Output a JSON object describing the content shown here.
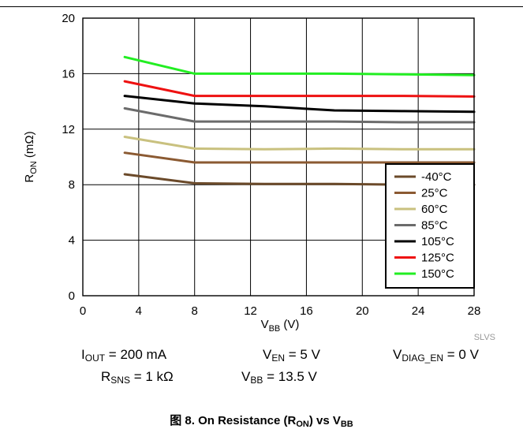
{
  "chart_data": {
    "type": "line",
    "xlabel": {
      "base": "V",
      "sub": "BB",
      "tail": " (V)"
    },
    "ylabel": {
      "base": "R",
      "sub": "ON",
      "tail": " (mΩ)"
    },
    "xlim": [
      0,
      28
    ],
    "ylim": [
      0,
      20
    ],
    "x_ticks": [
      0,
      4,
      8,
      12,
      16,
      20,
      24,
      28
    ],
    "y_ticks": [
      0,
      4,
      8,
      12,
      16,
      20
    ],
    "grid": true,
    "legend_position": "bottom-right",
    "series": [
      {
        "name": "-40°C",
        "color": "#6b4a2a",
        "x": [
          3,
          8,
          13,
          18,
          23,
          28
        ],
        "values": [
          8.75,
          8.1,
          8.05,
          8.05,
          8.0,
          8.0
        ]
      },
      {
        "name": "25°C",
        "color": "#8b5a32",
        "x": [
          3,
          8,
          13,
          18,
          23,
          28
        ],
        "values": [
          10.3,
          9.6,
          9.6,
          9.6,
          9.6,
          9.6
        ]
      },
      {
        "name": "60°C",
        "color": "#c9c17f",
        "x": [
          3,
          8,
          13,
          18,
          23,
          28
        ],
        "values": [
          11.45,
          10.6,
          10.55,
          10.6,
          10.55,
          10.55
        ]
      },
      {
        "name": "85°C",
        "color": "#6b6b6b",
        "x": [
          3,
          8,
          13,
          18,
          23,
          28
        ],
        "values": [
          13.5,
          12.55,
          12.55,
          12.55,
          12.5,
          12.5
        ]
      },
      {
        "name": "105°C",
        "color": "#000000",
        "x": [
          3,
          8,
          13,
          18,
          23,
          28
        ],
        "values": [
          14.4,
          13.85,
          13.65,
          13.35,
          13.3,
          13.25
        ]
      },
      {
        "name": "125°C",
        "color": "#ee1111",
        "x": [
          3,
          8,
          13,
          18,
          23,
          28
        ],
        "values": [
          15.45,
          14.4,
          14.4,
          14.4,
          14.4,
          14.35
        ]
      },
      {
        "name": "150°C",
        "color": "#22ee22",
        "x": [
          3,
          8,
          13,
          18,
          23,
          28
        ],
        "values": [
          17.2,
          16.0,
          16.0,
          16.0,
          15.95,
          15.9
        ]
      }
    ],
    "watermark": "SLVS"
  },
  "conditions": {
    "iout": {
      "base": "I",
      "sub": "OUT",
      "tail": " = 200 mA"
    },
    "ven": {
      "base": "V",
      "sub": "EN",
      "tail": " = 5 V"
    },
    "vdiag": {
      "base": "V",
      "sub": "DIAG_EN",
      "tail": " = 0 V"
    },
    "rsns": {
      "base": "R",
      "sub": "SNS",
      "tail": " = 1 kΩ"
    },
    "vbb": {
      "base": "V",
      "sub": "BB",
      "tail": " = 13.5 V"
    }
  },
  "caption": {
    "prefix": "图 8. On Resistance (R",
    "sub1": "ON",
    "mid": ") vs V",
    "sub2": "BB"
  }
}
